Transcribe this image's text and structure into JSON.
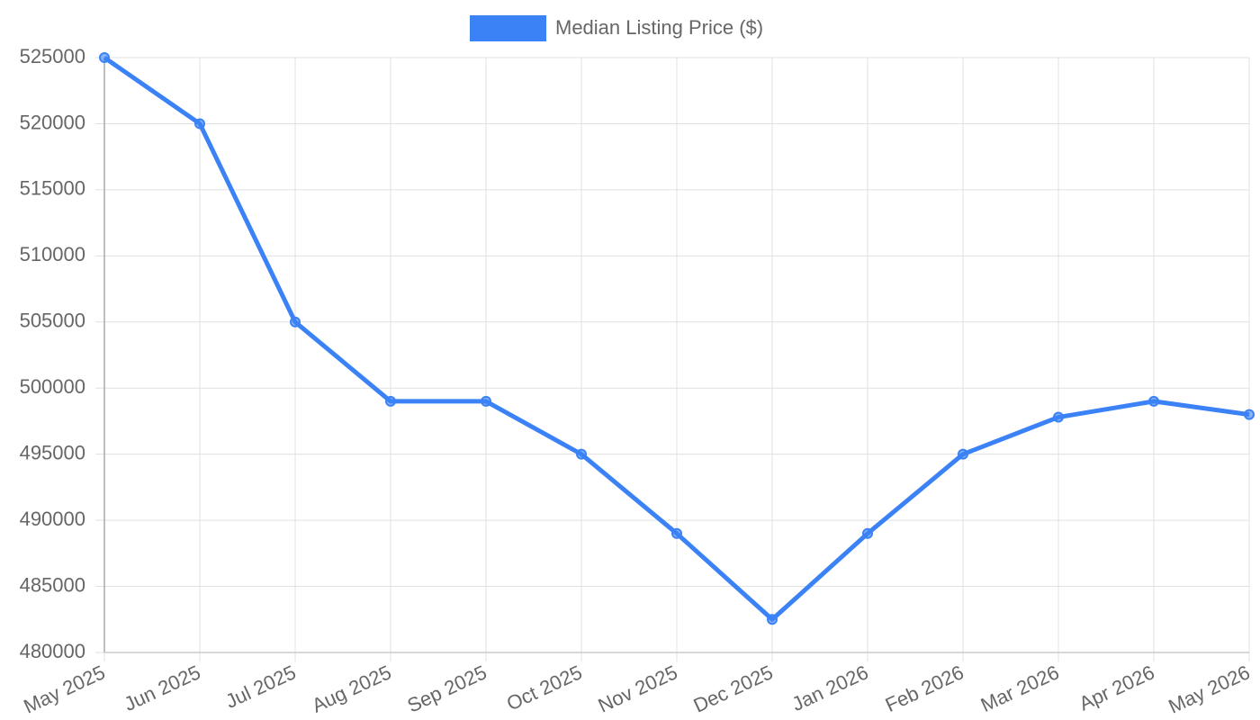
{
  "chart_data": {
    "type": "line",
    "categories": [
      "May 2025",
      "Jun 2025",
      "Jul 2025",
      "Aug 2025",
      "Sep 2025",
      "Oct 2025",
      "Nov 2025",
      "Dec 2025",
      "Jan 2026",
      "Feb 2026",
      "Mar 2026",
      "Apr 2026",
      "May 2026"
    ],
    "series": [
      {
        "name": "Median Listing Price ($)",
        "color": "#3b82f6",
        "values": [
          525000,
          520000,
          505000,
          499000,
          499000,
          495000,
          489000,
          482500,
          489000,
          495000,
          497800,
          499000,
          498000
        ]
      }
    ],
    "ylim": [
      480000,
      525000
    ],
    "yticks": [
      480000,
      485000,
      490000,
      495000,
      500000,
      505000,
      510000,
      515000,
      520000,
      525000
    ],
    "grid": true,
    "legend": "top"
  }
}
